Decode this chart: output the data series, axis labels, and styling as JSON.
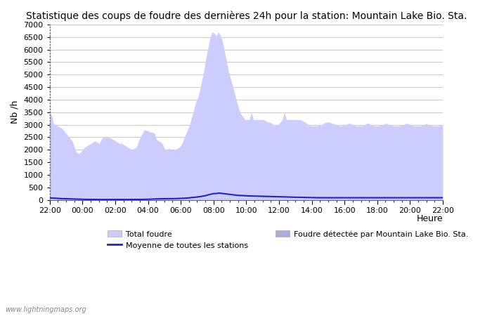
{
  "title": "Statistique des coups de foudre des dernières 24h pour la station: Mountain Lake Bio. Sta.",
  "xlabel": "Heure",
  "ylabel": "Nb /h",
  "watermark": "www.lightningmaps.org",
  "ylim": [
    0,
    7000
  ],
  "yticks": [
    0,
    500,
    1000,
    1500,
    2000,
    2500,
    3000,
    3500,
    4000,
    4500,
    5000,
    5500,
    6000,
    6500,
    7000
  ],
  "x_labels": [
    "22:00",
    "00:00",
    "02:00",
    "04:00",
    "06:00",
    "08:00",
    "10:00",
    "12:00",
    "14:00",
    "16:00",
    "18:00",
    "20:00",
    "22:00"
  ],
  "total_foudre_color": "#ccccff",
  "foudre_detectee_color": "#aaaadd",
  "moyenne_color": "#2222cc",
  "background_color": "#ffffff",
  "grid_color": "#cccccc",
  "total_foudre": [
    3500,
    3350,
    3000,
    2980,
    2950,
    2900,
    2850,
    2750,
    2650,
    2550,
    2450,
    2350,
    2100,
    1900,
    1850,
    1900,
    2000,
    2100,
    2150,
    2200,
    2250,
    2300,
    2350,
    2300,
    2250,
    2400,
    2500,
    2480,
    2500,
    2490,
    2450,
    2400,
    2350,
    2300,
    2250,
    2250,
    2200,
    2150,
    2100,
    2050,
    2000,
    2050,
    2100,
    2300,
    2500,
    2650,
    2800,
    2780,
    2750,
    2700,
    2700,
    2650,
    2400,
    2350,
    2300,
    2200,
    2000,
    2020,
    2050,
    2000,
    2020,
    2000,
    2050,
    2100,
    2200,
    2400,
    2600,
    2800,
    3000,
    3300,
    3600,
    3900,
    4100,
    4400,
    4800,
    5200,
    5700,
    6100,
    6500,
    6700,
    6650,
    6550,
    6700,
    6550,
    6300,
    5900,
    5500,
    5100,
    4800,
    4500,
    4200,
    3900,
    3600,
    3400,
    3300,
    3200,
    3200,
    3200,
    3500,
    3200,
    3200,
    3200,
    3200,
    3200,
    3200,
    3150,
    3100,
    3100,
    3050,
    3000,
    3000,
    3000,
    3100,
    3200,
    3500,
    3200,
    3200,
    3200,
    3200,
    3200,
    3200,
    3200,
    3200,
    3150,
    3100,
    3050,
    3000,
    2950,
    2950,
    2950,
    2950,
    2980,
    3000,
    3050,
    3100,
    3100,
    3100,
    3050,
    3050,
    3000,
    2980,
    2950,
    2950,
    3000,
    3000,
    3050,
    3050,
    3000,
    2980,
    2950,
    2950,
    2950,
    2950,
    3000,
    3050,
    3050,
    3000,
    2980,
    2950,
    2950,
    2950,
    3000,
    3000,
    3050,
    3050,
    3000,
    2980,
    2950,
    2950,
    2950,
    2950,
    2980,
    3000,
    3050,
    3050,
    3000,
    2980,
    2950,
    2950,
    2950,
    2950,
    2980,
    3000,
    3050,
    3000,
    2980,
    2950,
    2950,
    2950,
    2950,
    2980,
    2950
  ],
  "moyenne_stations": [
    80,
    75,
    70,
    65,
    60,
    55,
    50,
    50,
    45,
    45,
    40,
    38,
    35,
    30,
    28,
    25,
    25,
    22,
    20,
    20,
    18,
    18,
    18,
    15,
    15,
    15,
    15,
    15,
    15,
    15,
    15,
    15,
    15,
    15,
    15,
    15,
    15,
    15,
    15,
    15,
    15,
    15,
    15,
    15,
    18,
    20,
    22,
    25,
    28,
    30,
    35,
    38,
    40,
    42,
    45,
    48,
    50,
    50,
    50,
    50,
    50,
    52,
    55,
    58,
    60,
    65,
    70,
    75,
    85,
    95,
    100,
    110,
    120,
    130,
    145,
    160,
    175,
    200,
    220,
    240,
    255,
    255,
    270,
    265,
    255,
    245,
    235,
    225,
    215,
    205,
    195,
    185,
    180,
    175,
    170,
    165,
    160,
    158,
    155,
    155,
    152,
    150,
    148,
    145,
    143,
    142,
    140,
    138,
    135,
    133,
    130,
    128,
    125,
    122,
    120,
    118,
    115,
    113,
    110,
    108,
    105,
    103,
    100,
    100,
    98,
    95,
    93,
    90,
    88,
    88,
    87,
    87,
    87,
    87,
    87,
    87,
    87,
    87,
    87,
    87,
    88,
    88,
    88,
    88,
    88,
    88,
    88,
    88,
    88,
    88,
    88,
    88,
    88,
    88,
    88,
    88,
    88,
    88,
    88,
    88,
    88,
    88,
    88,
    88,
    88,
    88,
    88,
    88,
    88,
    88,
    88,
    88,
    88,
    88,
    88,
    88,
    88,
    88,
    88,
    88,
    88,
    88,
    88,
    88,
    88,
    88,
    88,
    88,
    88,
    88,
    88,
    88
  ],
  "n_points": 192,
  "legend_total_foudre": "Total foudre",
  "legend_moyenne": "Moyenne de toutes les stations",
  "legend_detectee": "Foudre détectée par Mountain Lake Bio. Sta."
}
